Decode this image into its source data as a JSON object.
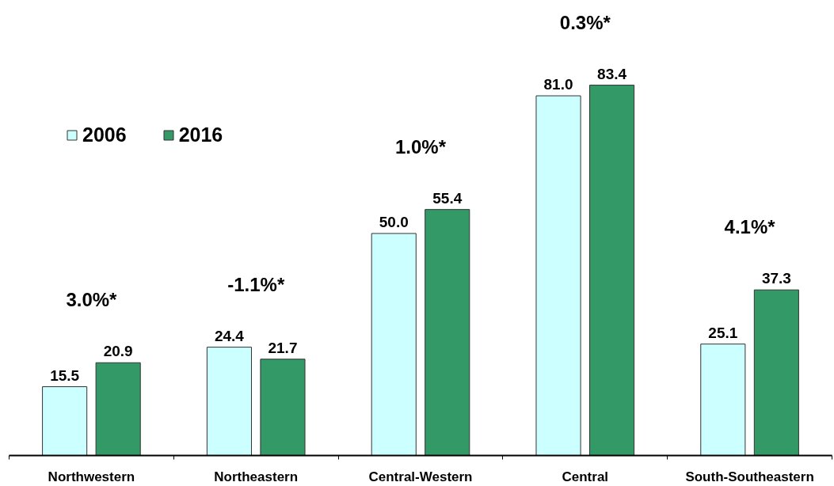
{
  "chart_data": {
    "type": "bar",
    "categories": [
      "Northwestern",
      "Northeastern",
      "Central-Western",
      "Central",
      "South-Southeastern"
    ],
    "series": [
      {
        "name": "2006",
        "color": "#ccffff",
        "values": [
          15.5,
          24.4,
          50.0,
          81.0,
          25.1
        ],
        "value_labels": [
          "15.5",
          "24.4",
          "50.0",
          "81.0",
          "25.1"
        ]
      },
      {
        "name": "2016",
        "color": "#339966",
        "values": [
          20.9,
          21.7,
          55.4,
          83.4,
          37.3
        ],
        "value_labels": [
          "20.9",
          "21.7",
          "55.4",
          "83.4",
          "37.3"
        ]
      }
    ],
    "legend": "top left",
    "grid": false,
    "annotations": [
      "3.0%*",
      "-1.1%*",
      "1.0%*",
      "0.3%*",
      "4.1%*"
    ]
  }
}
